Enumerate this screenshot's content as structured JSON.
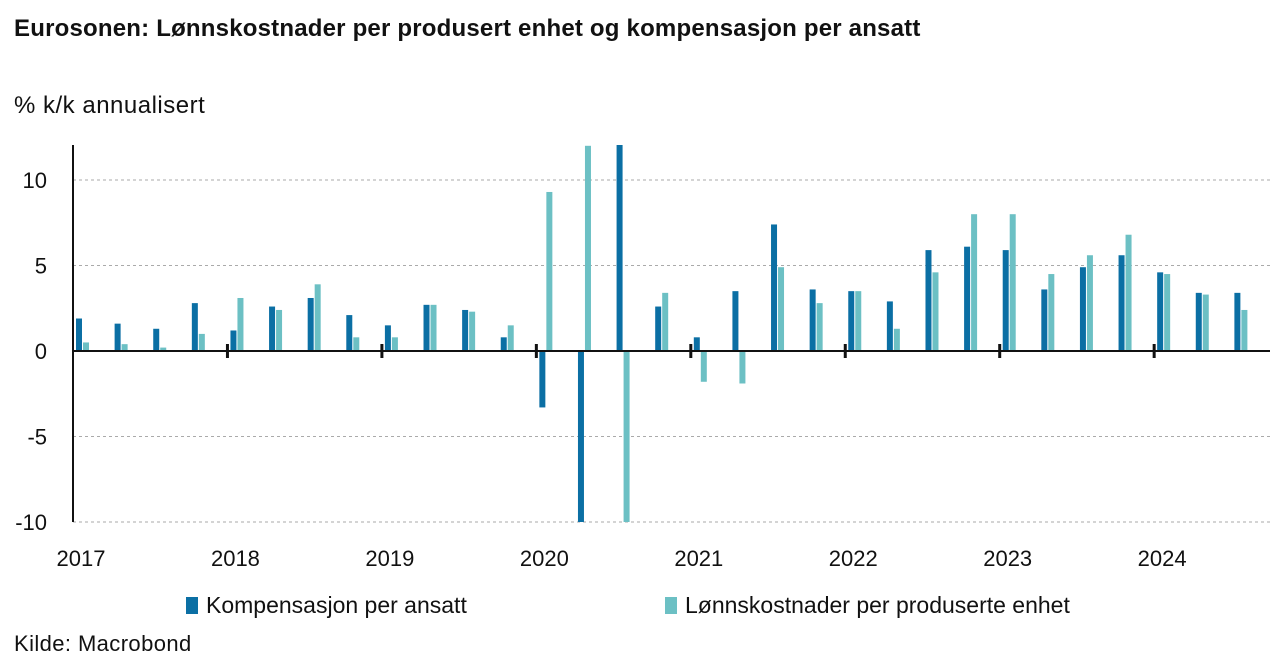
{
  "header": {
    "title": "Eurosonen: Lønnskostnader per produsert enhet og kompensasjon per ansatt",
    "subtitle": "% k/k annualisert"
  },
  "source": "Kilde: Macrobond",
  "colors": {
    "series1": "#0b6fa4",
    "series2": "#6cc0c4",
    "grid": "#aaaaaa",
    "axis": "#111111"
  },
  "chart_data": {
    "type": "bar",
    "ylim": [
      -10,
      12
    ],
    "yticks": [
      10,
      5,
      0,
      -5,
      -10
    ],
    "grid": true,
    "legend_position": "bottom",
    "x_tick_labels": [
      "2017",
      "2018",
      "2019",
      "2020",
      "2021",
      "2022",
      "2023",
      "2024"
    ],
    "categories": [
      "2017 K1",
      "2017 K2",
      "2017 K3",
      "2017 K4",
      "2018 K1",
      "2018 K2",
      "2018 K3",
      "2018 K4",
      "2019 K1",
      "2019 K2",
      "2019 K3",
      "2019 K4",
      "2020 K1",
      "2020 K2",
      "2020 K3",
      "2020 K4",
      "2021 K1",
      "2021 K2",
      "2021 K3",
      "2021 K4",
      "2022 K1",
      "2022 K2",
      "2022 K3",
      "2022 K4",
      "2023 K1",
      "2023 K2",
      "2023 K3",
      "2023 K4",
      "2024 K1",
      "2024 K2",
      "2024 K3"
    ],
    "series": [
      {
        "name": "Kompensasjon per ansatt",
        "values": [
          1.9,
          1.6,
          1.3,
          2.8,
          1.2,
          2.6,
          3.1,
          2.1,
          1.5,
          2.7,
          2.4,
          0.8,
          -3.3,
          -10.2,
          12.1,
          2.6,
          0.8,
          3.5,
          7.4,
          3.6,
          3.5,
          2.9,
          5.9,
          6.1,
          5.9,
          3.6,
          4.9,
          5.6,
          4.6,
          3.4,
          3.4
        ]
      },
      {
        "name": "Lønnskostnader per produserte enhet",
        "values": [
          0.5,
          0.4,
          0.2,
          1.0,
          3.1,
          2.4,
          3.9,
          0.8,
          0.8,
          2.7,
          2.3,
          1.5,
          9.3,
          12.0,
          -10.2,
          3.4,
          -1.8,
          -1.9,
          4.9,
          2.8,
          3.5,
          1.3,
          4.6,
          8.0,
          8.0,
          4.5,
          5.6,
          6.8,
          4.5,
          3.3,
          2.4
        ]
      }
    ]
  }
}
